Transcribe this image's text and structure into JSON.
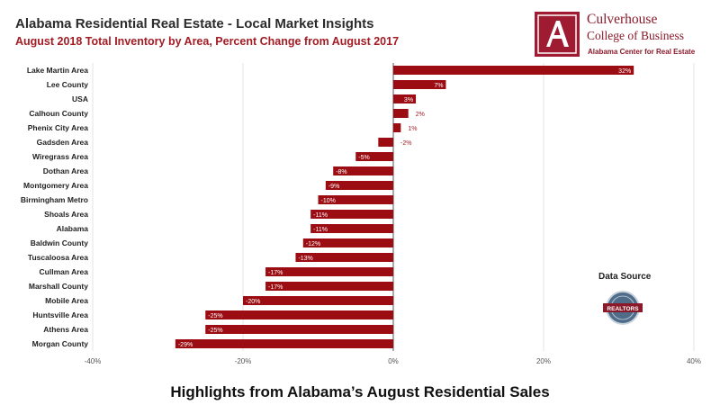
{
  "header": {
    "title": "Alabama Residential Real Estate - Local Market Insights",
    "subtitle": "August 2018 Total Inventory by Area, Percent Change from August 2017"
  },
  "logo": {
    "name": "Culverhouse",
    "college": "College of Business",
    "center": "Alabama Center for Real Estate",
    "badge_text": "REALTORS"
  },
  "source": {
    "label": "Data Source"
  },
  "footer": {
    "text": "Highlights from Alabama’s August Residential Sales"
  },
  "colors": {
    "bar": "#9b0d12",
    "title_accent": "#a31c24",
    "grid": "#e3e3e3"
  },
  "chart_data": {
    "type": "bar",
    "orientation": "horizontal",
    "categories": [
      "Lake Martin Area",
      "Lee County",
      "USA",
      "Calhoun County",
      "Phenix City Area",
      "Gadsden Area",
      "Wiregrass Area",
      "Dothan Area",
      "Montgomery Area",
      "Birmingham Metro",
      "Shoals Area",
      "Alabama",
      "Baldwin County",
      "Tuscaloosa Area",
      "Cullman Area",
      "Marshall County",
      "Mobile Area",
      "Huntsville Area",
      "Athens Area",
      "Morgan County"
    ],
    "values": [
      32,
      7,
      3,
      2,
      1,
      -2,
      -5,
      -8,
      -9,
      -10,
      -11,
      -11,
      -12,
      -13,
      -17,
      -17,
      -20,
      -25,
      -25,
      -29
    ],
    "value_labels": [
      "32%",
      "7%",
      "3%",
      "2%",
      "1%",
      "-2%",
      "-5%",
      "-8%",
      "-9%",
      "-10%",
      "-11%",
      "-11%",
      "-12%",
      "-13%",
      "-17%",
      "-17%",
      "-20%",
      "-25%",
      "-25%",
      "-29%"
    ],
    "xlim": [
      -40,
      40
    ],
    "xticks": [
      -40,
      -20,
      0,
      20,
      40
    ],
    "xtick_labels": [
      "-40%",
      "-20%",
      "0%",
      "20%",
      "40%"
    ],
    "grid": true
  }
}
